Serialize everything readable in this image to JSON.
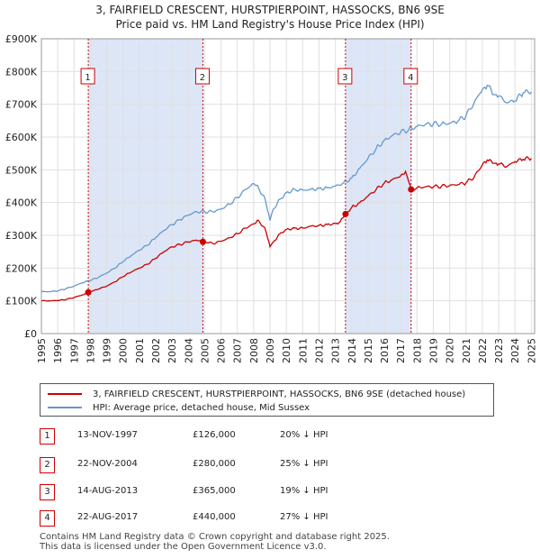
{
  "header": {
    "title": "3, FAIRFIELD CRESCENT, HURSTPIERPOINT, HASSOCKS, BN6 9SE",
    "subtitle": "Price paid vs. HM Land Registry's House Price Index (HPI)"
  },
  "colors": {
    "property_line": "#cc0000",
    "hpi_line": "#6699cc",
    "shade": "#dde6f7",
    "marker_border": "#cc0000",
    "grid": "#e0e0e0"
  },
  "chart_data": {
    "type": "line",
    "title": "3, FAIRFIELD CRESCENT, HURSTPIERPOINT, HASSOCKS, BN6 9SE",
    "subtitle": "Price paid vs. HM Land Registry's House Price Index (HPI)",
    "xlabel": "",
    "ylabel": "",
    "xlim": [
      1995,
      2025.2
    ],
    "ylim": [
      0,
      900000
    ],
    "yticks": [
      0,
      100000,
      200000,
      300000,
      400000,
      500000,
      600000,
      700000,
      800000,
      900000
    ],
    "ytick_labels": [
      "£0",
      "£100K",
      "£200K",
      "£300K",
      "£400K",
      "£500K",
      "£600K",
      "£700K",
      "£800K",
      "£900K"
    ],
    "xticks": [
      "1995",
      "1996",
      "1997",
      "1998",
      "1999",
      "2000",
      "2001",
      "2002",
      "2003",
      "2004",
      "2005",
      "2006",
      "2007",
      "2008",
      "2009",
      "2010",
      "2011",
      "2012",
      "2013",
      "2014",
      "2015",
      "2016",
      "2017",
      "2018",
      "2019",
      "2020",
      "2021",
      "2022",
      "2023",
      "2024",
      "2025"
    ],
    "grid": true,
    "shaded_ranges": [
      [
        1997.87,
        2004.89
      ],
      [
        2013.62,
        2017.64
      ]
    ],
    "series": [
      {
        "name": "3, FAIRFIELD CRESCENT, HURSTPIERPOINT, HASSOCKS, BN6 9SE (detached house)",
        "color": "#cc0000",
        "x": [
          1995,
          1995.5,
          1996,
          1996.5,
          1997,
          1997.5,
          1997.87,
          1998.5,
          1999,
          1999.5,
          2000,
          2000.5,
          2001,
          2001.5,
          2002,
          2002.5,
          2003,
          2003.5,
          2004,
          2004.5,
          2004.89,
          2005.5,
          2006,
          2006.5,
          2007,
          2007.5,
          2008,
          2008.3,
          2008.7,
          2009,
          2009.2,
          2009.6,
          2010,
          2010.5,
          2011,
          2011.5,
          2012,
          2012.5,
          2013,
          2013.3,
          2013.62,
          2014,
          2014.5,
          2015,
          2015.5,
          2016,
          2016.5,
          2017,
          2017.3,
          2017.5,
          2017.64,
          2018,
          2018.5,
          2019,
          2019.5,
          2020,
          2020.5,
          2021,
          2021.5,
          2022,
          2022.3,
          2022.7,
          2023,
          2023.5,
          2024,
          2024.5,
          2025
        ],
        "y": [
          100000,
          100000,
          101000,
          104000,
          110000,
          118000,
          126000,
          136000,
          145000,
          158000,
          174000,
          188000,
          200000,
          212000,
          230000,
          250000,
          265000,
          272000,
          280000,
          285000,
          280000,
          275000,
          282000,
          292000,
          305000,
          322000,
          335000,
          345000,
          320000,
          265000,
          280000,
          305000,
          318000,
          322000,
          322000,
          328000,
          330000,
          333000,
          336000,
          342000,
          365000,
          385000,
          400000,
          420000,
          440000,
          460000,
          470000,
          482000,
          495000,
          462000,
          440000,
          445000,
          448000,
          448000,
          450000,
          452000,
          455000,
          460000,
          478000,
          515000,
          530000,
          520000,
          518000,
          510000,
          525000,
          532000,
          535000
        ]
      },
      {
        "name": "HPI: Average price, detached house, Mid Sussex",
        "color": "#6699cc",
        "x": [
          1995,
          1995.5,
          1996,
          1996.5,
          1997,
          1997.5,
          1998,
          1998.5,
          1999,
          1999.5,
          2000,
          2000.5,
          2001,
          2001.5,
          2002,
          2002.5,
          2003,
          2003.5,
          2004,
          2004.5,
          2005,
          2005.5,
          2006,
          2006.5,
          2007,
          2007.5,
          2008,
          2008.3,
          2008.7,
          2009,
          2009.2,
          2009.6,
          2010,
          2010.5,
          2011,
          2011.5,
          2012,
          2012.5,
          2013,
          2013.5,
          2014,
          2014.5,
          2015,
          2015.5,
          2016,
          2016.5,
          2017,
          2017.5,
          2018,
          2018.5,
          2019,
          2019.5,
          2020,
          2020.5,
          2021,
          2021.5,
          2022,
          2022.3,
          2022.7,
          2023,
          2023.5,
          2024,
          2024.5,
          2025
        ],
        "y": [
          128000,
          128000,
          130000,
          137000,
          145000,
          155000,
          162000,
          172000,
          185000,
          200000,
          220000,
          238000,
          255000,
          270000,
          293000,
          315000,
          333000,
          348000,
          362000,
          372000,
          372000,
          372000,
          380000,
          395000,
          415000,
          440000,
          458000,
          445000,
          410000,
          345000,
          380000,
          410000,
          430000,
          440000,
          438000,
          440000,
          443000,
          445000,
          450000,
          460000,
          475000,
          505000,
          535000,
          565000,
          590000,
          605000,
          615000,
          623000,
          633000,
          638000,
          640000,
          640000,
          642000,
          648000,
          665000,
          705000,
          745000,
          758000,
          730000,
          725000,
          705000,
          710000,
          735000,
          738000
        ]
      }
    ],
    "sales": [
      {
        "label": "1",
        "x": 1997.87,
        "y": 126000
      },
      {
        "label": "2",
        "x": 2004.89,
        "y": 280000
      },
      {
        "label": "3",
        "x": 2013.62,
        "y": 365000
      },
      {
        "label": "4",
        "x": 2017.64,
        "y": 440000
      }
    ]
  },
  "legend": {
    "property": "3, FAIRFIELD CRESCENT, HURSTPIERPOINT, HASSOCKS, BN6 9SE (detached house)",
    "hpi": "HPI: Average price, detached house, Mid Sussex"
  },
  "transactions": [
    {
      "num": "1",
      "date": "13-NOV-1997",
      "price": "£126,000",
      "diff": "20% ↓ HPI"
    },
    {
      "num": "2",
      "date": "22-NOV-2004",
      "price": "£280,000",
      "diff": "25% ↓ HPI"
    },
    {
      "num": "3",
      "date": "14-AUG-2013",
      "price": "£365,000",
      "diff": "19% ↓ HPI"
    },
    {
      "num": "4",
      "date": "22-AUG-2017",
      "price": "£440,000",
      "diff": "27% ↓ HPI"
    }
  ],
  "footer": {
    "line1": "Contains HM Land Registry data © Crown copyright and database right 2025.",
    "line2": "This data is licensed under the Open Government Licence v3.0."
  }
}
